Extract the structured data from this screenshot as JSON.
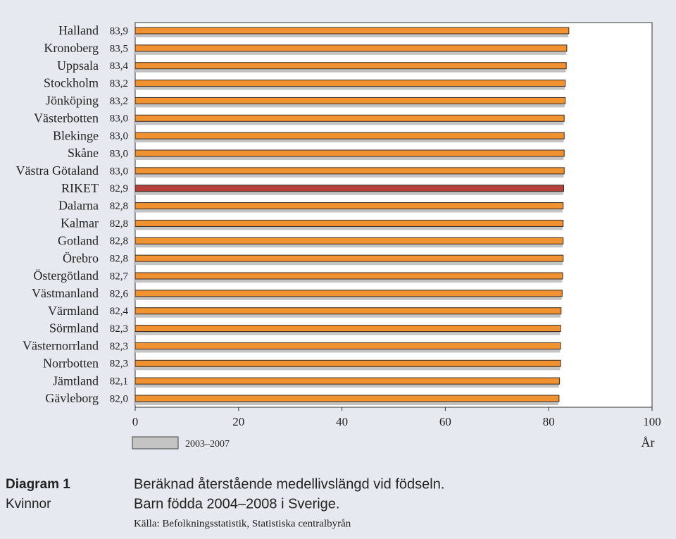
{
  "chart_data": {
    "type": "bar",
    "orientation": "horizontal",
    "diagram_label": "Diagram 1",
    "group_label": "Kvinnor",
    "title": "Beräknad återstående medellivslängd vid födseln.",
    "subtitle": "Barn födda 2004–2008 i Sverige.",
    "source": "Källa: Befolkningsstatistik, Statistiska centralbyrån",
    "x_label": "År",
    "categories": [
      "Halland",
      "Kronoberg",
      "Uppsala",
      "Stockholm",
      "Jönköping",
      "Västerbotten",
      "Blekinge",
      "Skåne",
      "Västra Götaland",
      "RIKET",
      "Dalarna",
      "Kalmar",
      "Gotland",
      "Örebro",
      "Östergötland",
      "Västmanland",
      "Värmland",
      "Sörmland",
      "Västernorrland",
      "Norrbotten",
      "Jämtland",
      "Gävleborg"
    ],
    "series": [
      {
        "color": "#f0922f",
        "colors": [
          "#f0922f",
          "#f0922f",
          "#f0922f",
          "#f0922f",
          "#f0922f",
          "#f0922f",
          "#f0922f",
          "#f0922f",
          "#f0922f",
          "#b3403a",
          "#f0922f",
          "#f0922f",
          "#f0922f",
          "#f0922f",
          "#f0922f",
          "#f0922f",
          "#f0922f",
          "#f0922f",
          "#f0922f",
          "#f0922f",
          "#f0922f",
          "#f0922f"
        ],
        "values": [
          83.9,
          83.5,
          83.4,
          83.2,
          83.2,
          83.0,
          83.0,
          83.0,
          83.0,
          82.9,
          82.8,
          82.8,
          82.8,
          82.8,
          82.7,
          82.6,
          82.4,
          82.3,
          82.3,
          82.3,
          82.1,
          82.0
        ],
        "value_labels": [
          "83,9",
          "83,5",
          "83,4",
          "83,2",
          "83,2",
          "83,0",
          "83,0",
          "83,0",
          "83,0",
          "82,9",
          "82,8",
          "82,8",
          "82,8",
          "82,8",
          "82,7",
          "82,6",
          "82,4",
          "82,3",
          "82,3",
          "82,3",
          "82,1",
          "82,0"
        ]
      },
      {
        "name": "2003–2007",
        "color": "#c4c4c4",
        "values": [
          83.8,
          83.4,
          83.3,
          83.1,
          83.1,
          82.9,
          82.9,
          82.9,
          82.9,
          82.8,
          82.7,
          82.7,
          82.7,
          82.7,
          82.6,
          82.5,
          82.3,
          82.2,
          82.2,
          82.2,
          82.0,
          81.9
        ]
      }
    ],
    "xlim": [
      0,
      100
    ],
    "xticks": [
      0,
      20,
      40,
      60,
      80,
      100
    ]
  }
}
